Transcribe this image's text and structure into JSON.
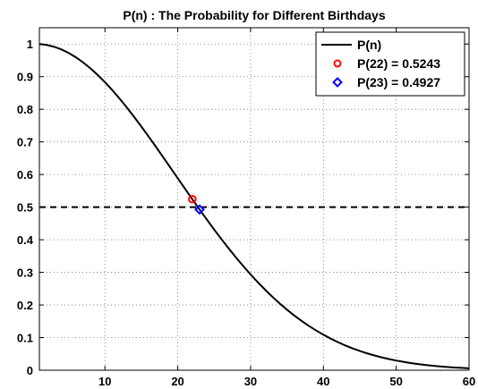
{
  "chart_data": {
    "type": "line",
    "title": "P(n) : The Probability for Different Birthdays",
    "xlabel": "",
    "ylabel": "",
    "xlim": [
      1,
      60
    ],
    "ylim": [
      0,
      1.05
    ],
    "x_ticks": [
      10,
      20,
      30,
      40,
      50,
      60
    ],
    "y_ticks": [
      0,
      0.1,
      0.2,
      0.3,
      0.4,
      0.5,
      0.6,
      0.7,
      0.8,
      0.9,
      1
    ],
    "grid": true,
    "legend_position": "top-right",
    "series": [
      {
        "name": "P(n)",
        "color": "#000000",
        "style": "solid",
        "x": [
          1,
          2,
          3,
          4,
          5,
          6,
          7,
          8,
          9,
          10,
          11,
          12,
          13,
          14,
          15,
          16,
          17,
          18,
          19,
          20,
          21,
          22,
          23,
          24,
          25,
          26,
          27,
          28,
          29,
          30,
          31,
          32,
          33,
          34,
          35,
          36,
          37,
          38,
          39,
          40,
          41,
          42,
          43,
          44,
          45,
          46,
          47,
          48,
          49,
          50,
          51,
          52,
          53,
          54,
          55,
          56,
          57,
          58,
          59,
          60
        ],
        "y": [
          1.0,
          0.9973,
          0.9918,
          0.9836,
          0.9729,
          0.9595,
          0.9438,
          0.9257,
          0.9054,
          0.8831,
          0.8589,
          0.833,
          0.8056,
          0.7769,
          0.7471,
          0.7164,
          0.685,
          0.6531,
          0.6209,
          0.5886,
          0.5563,
          0.5243,
          0.4927,
          0.4617,
          0.4313,
          0.4018,
          0.3731,
          0.3455,
          0.319,
          0.2937,
          0.2695,
          0.2467,
          0.225,
          0.2047,
          0.1856,
          0.1678,
          0.1513,
          0.1359,
          0.1218,
          0.1088,
          0.0968,
          0.086,
          0.076,
          0.0671,
          0.059,
          0.0517,
          0.0452,
          0.0394,
          0.0342,
          0.0296,
          0.0256,
          0.022,
          0.0189,
          0.0162,
          0.0138,
          0.0117,
          0.0099,
          0.0084,
          0.0071,
          0.0059
        ]
      },
      {
        "name": "P(22) = 0.5243",
        "type": "scatter",
        "marker": "circle",
        "color": "#ff0000",
        "x": [
          22
        ],
        "y": [
          0.5243
        ]
      },
      {
        "name": "P(23) = 0.4927",
        "type": "scatter",
        "marker": "diamond",
        "color": "#0000ff",
        "x": [
          23
        ],
        "y": [
          0.4927
        ]
      }
    ],
    "reference_lines": [
      {
        "orientation": "horizontal",
        "y": 0.5,
        "style": "dashed",
        "color": "#000000"
      }
    ]
  }
}
